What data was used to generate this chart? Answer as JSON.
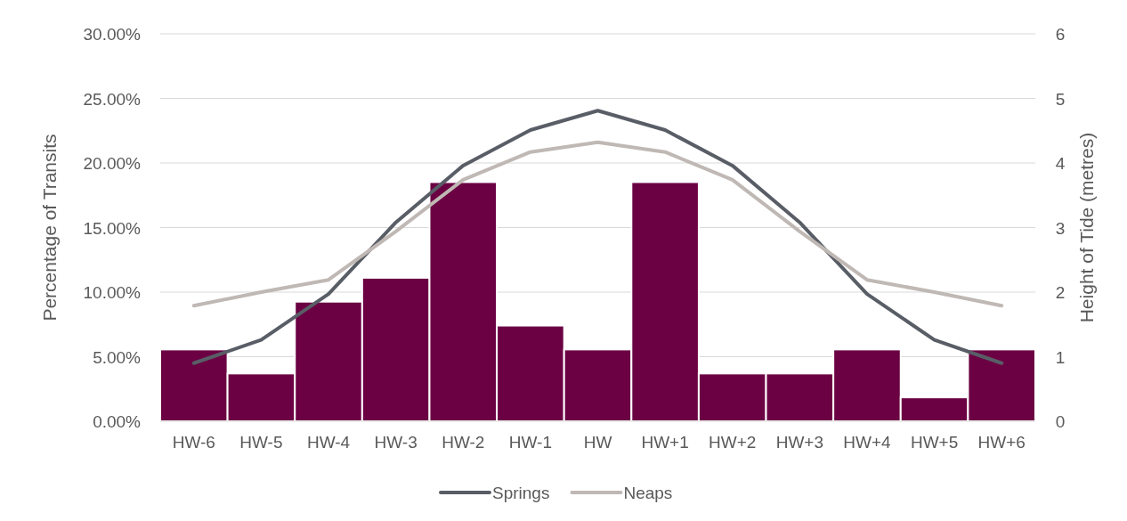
{
  "chart_data": {
    "type": "bar",
    "ylabel": "Percentage of Transits",
    "y2label": "Height of Tide (metres)",
    "categories": [
      "HW-6",
      "HW-5",
      "HW-4",
      "HW-3",
      "HW-2",
      "HW-1",
      "HW",
      "HW+1",
      "HW+2",
      "HW+3",
      "HW+4",
      "HW+5",
      "HW+6"
    ],
    "series": [
      {
        "color": "#6b0043",
        "values": [
          5.56,
          3.7,
          9.26,
          11.11,
          18.52,
          7.41,
          5.56,
          18.52,
          3.7,
          3.7,
          5.56,
          1.85,
          5.56
        ]
      },
      {
        "type": "line",
        "name": "Springs",
        "color": "#595d66",
        "axis": "y2",
        "values": [
          0.9,
          1.26,
          1.97,
          3.08,
          3.96,
          4.51,
          4.81,
          4.51,
          3.96,
          3.08,
          1.97,
          1.26,
          0.9
        ]
      },
      {
        "type": "line",
        "name": "Neaps",
        "color": "#bfb8b4",
        "axis": "y2",
        "values": [
          1.79,
          2.0,
          2.19,
          2.94,
          3.74,
          4.17,
          4.32,
          4.17,
          3.74,
          2.94,
          2.19,
          2.0,
          1.79
        ]
      }
    ],
    "ylim": [
      0,
      30
    ],
    "yticks": [
      {
        "value": 0,
        "label": "0.00%"
      },
      {
        "value": 5,
        "label": "5.00%"
      },
      {
        "value": 10,
        "label": "10.00%"
      },
      {
        "value": 15,
        "label": "15.00%"
      },
      {
        "value": 20,
        "label": "20.00%"
      },
      {
        "value": 25,
        "label": "25.00%"
      },
      {
        "value": 30,
        "label": "30.00%"
      }
    ],
    "y2lim": [
      0,
      6
    ],
    "y2ticks": [
      0,
      1,
      2,
      3,
      4,
      5,
      6
    ],
    "grid": "y",
    "legend": "bottom",
    "marker": "none",
    "line_style": "solid"
  }
}
